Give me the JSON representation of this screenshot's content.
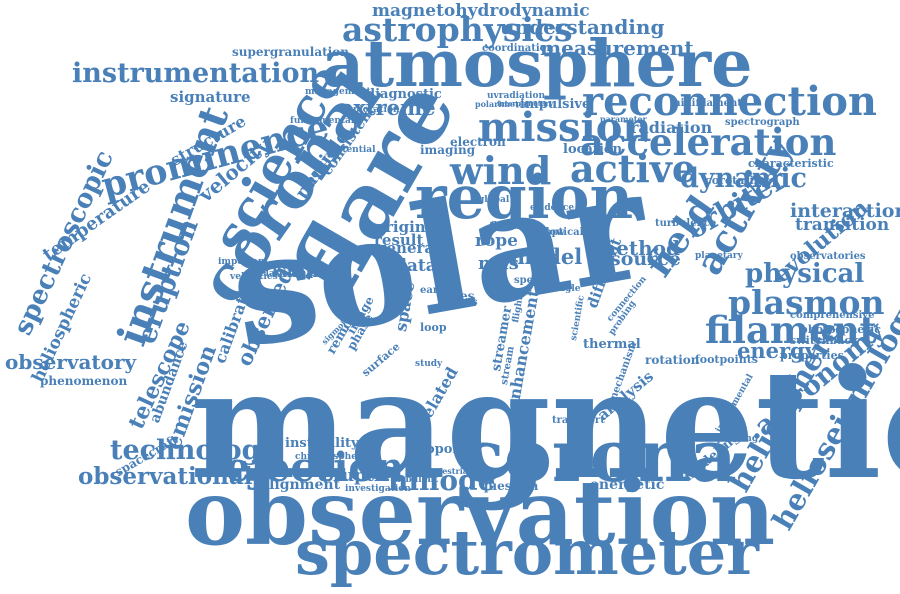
{
  "word_color": "#4a80b8",
  "background_color": "#ffffff",
  "words": [
    "magnetic",
    "solar",
    "observation",
    "spectrometer",
    "corona",
    "atmosphere",
    "coronal",
    "flare",
    "region",
    "science",
    "instrument",
    "mission",
    "wind",
    "active",
    "reconnection",
    "acceleration",
    "prominence",
    "instrumentation",
    "astrophysics",
    "field",
    "activity",
    "filament",
    "plasmon",
    "dynamic",
    "orbiter",
    "physical",
    "heliosphere",
    "helioseismology",
    "astronomy",
    "ejection",
    "technology",
    "observational",
    "hinode",
    "telescope",
    "eruption",
    "emission",
    "observed",
    "spectroscopic",
    "heliospheric",
    "observatory",
    "temperature",
    "extreme",
    "measurement",
    "understanding",
    "magnetohydrodynamic",
    "supergranulation",
    "coordination",
    "radiation",
    "interaction",
    "transition",
    "evolution",
    "method",
    "source",
    "energy",
    "model",
    "mas",
    "velocity",
    "structure",
    "signature",
    "diagnostic",
    "impulsive",
    "calibration",
    "eruptive",
    "alignment",
    "energetic",
    "question",
    "abundance",
    "spacecraft",
    "phenomenon",
    "photospheric",
    "properties",
    "modeling",
    "corotating",
    "characteristic",
    "rotation",
    "footpoints",
    "switchback",
    "comprehensive",
    "observatories",
    "minifilament",
    "spectrograph",
    "imaging",
    "electron",
    "location",
    "topology",
    "instability",
    "turbulent",
    "chromosphere",
    "investigation",
    "terrestrial",
    "cmes",
    "rope",
    "data",
    "general",
    "result",
    "origin",
    "kinetic",
    "thermal",
    "different",
    "analysis",
    "enhancement",
    "related",
    "space",
    "transport",
    "mechanism",
    "particle",
    "consistent",
    "uvradiation",
    "polarimeter",
    "interplanetary",
    "parameter",
    "management",
    "exploration",
    "fundamental",
    "potential",
    "spectral",
    "earth",
    "surface",
    "study",
    "remote",
    "phase",
    "image",
    "loop",
    "class",
    "evidence",
    "optical",
    "flaring",
    "global",
    "planetary",
    "turbulence",
    "sigmoidal",
    "velocities",
    "relationship",
    "important",
    "stream",
    "scientific",
    "probing",
    "connection",
    "flight",
    "spectra",
    "upflow",
    "single",
    "streamer",
    "corresponding",
    "instrumental"
  ]
}
